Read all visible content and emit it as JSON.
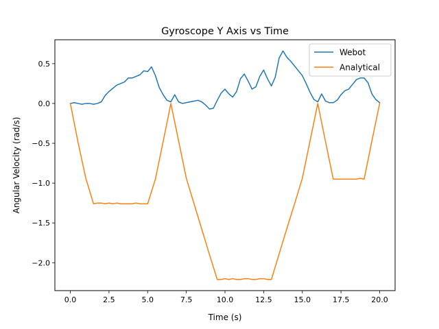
{
  "chart_data": {
    "type": "line",
    "title": "Gyroscope Y Axis vs Time",
    "xlabel": "Time (s)",
    "ylabel": "Angular Velocity (rad/s)",
    "xlim": [
      -1.0,
      21.0
    ],
    "ylim": [
      -2.35,
      0.8
    ],
    "xticks": [
      0.0,
      2.5,
      5.0,
      7.5,
      10.0,
      12.5,
      15.0,
      17.5,
      20.0
    ],
    "xtick_labels": [
      "0.0",
      "2.5",
      "5.0",
      "7.5",
      "10.0",
      "12.5",
      "15.0",
      "17.5",
      "20.0"
    ],
    "yticks": [
      -2.0,
      -1.5,
      -1.0,
      -0.5,
      0.0,
      0.5
    ],
    "ytick_labels": [
      "−2.0",
      "−1.5",
      "−1.0",
      "−0.5",
      "0.0",
      "0.5"
    ],
    "grid": false,
    "legend_position": "top-right",
    "series": [
      {
        "name": "Webot",
        "color": "#1f77b4",
        "x": [
          0.0,
          0.25,
          0.5,
          0.75,
          1.0,
          1.25,
          1.5,
          1.75,
          2.0,
          2.25,
          2.5,
          2.75,
          3.0,
          3.25,
          3.5,
          3.75,
          4.0,
          4.25,
          4.5,
          4.75,
          5.0,
          5.25,
          5.5,
          5.75,
          6.0,
          6.25,
          6.5,
          6.75,
          7.0,
          7.25,
          7.5,
          7.75,
          8.0,
          8.25,
          8.5,
          8.75,
          9.0,
          9.25,
          9.5,
          9.75,
          10.0,
          10.25,
          10.5,
          10.75,
          11.0,
          11.25,
          11.5,
          11.75,
          12.0,
          12.25,
          12.5,
          12.75,
          13.0,
          13.25,
          13.5,
          13.75,
          14.0,
          14.25,
          14.5,
          14.75,
          15.0,
          15.25,
          15.5,
          15.75,
          16.0,
          16.25,
          16.5,
          16.75,
          17.0,
          17.25,
          17.5,
          17.75,
          18.0,
          18.25,
          18.5,
          18.75,
          19.0,
          19.25,
          19.5,
          19.75,
          20.0
        ],
        "y": [
          0.0,
          0.01,
          0.0,
          -0.01,
          0.0,
          0.0,
          -0.01,
          0.0,
          0.02,
          0.1,
          0.15,
          0.19,
          0.23,
          0.25,
          0.27,
          0.32,
          0.32,
          0.34,
          0.36,
          0.41,
          0.4,
          0.46,
          0.35,
          0.2,
          0.11,
          0.04,
          0.02,
          0.11,
          0.02,
          0.0,
          0.01,
          0.02,
          0.03,
          0.04,
          0.02,
          -0.02,
          -0.07,
          -0.06,
          0.04,
          0.13,
          0.18,
          0.12,
          0.08,
          0.15,
          0.31,
          0.37,
          0.28,
          0.18,
          0.21,
          0.34,
          0.42,
          0.31,
          0.22,
          0.33,
          0.57,
          0.66,
          0.58,
          0.53,
          0.47,
          0.41,
          0.35,
          0.25,
          0.14,
          0.05,
          0.02,
          0.12,
          0.03,
          0.01,
          0.01,
          0.04,
          0.11,
          0.16,
          0.18,
          0.24,
          0.3,
          0.32,
          0.32,
          0.26,
          0.12,
          0.05,
          0.01
        ]
      },
      {
        "name": "Analytical",
        "color": "#ff7f0e",
        "x": [
          0.0,
          0.5,
          1.0,
          1.5,
          1.75,
          2.0,
          2.25,
          2.5,
          2.75,
          3.0,
          3.25,
          3.5,
          3.75,
          4.0,
          4.25,
          4.5,
          4.75,
          5.0,
          5.5,
          6.0,
          6.5,
          7.0,
          7.5,
          8.0,
          8.5,
          9.0,
          9.5,
          9.75,
          10.0,
          10.25,
          10.5,
          10.75,
          11.0,
          11.25,
          11.5,
          11.75,
          12.0,
          12.25,
          12.5,
          12.75,
          13.0,
          13.5,
          14.0,
          14.5,
          15.0,
          15.5,
          16.0,
          16.5,
          17.0,
          17.25,
          17.5,
          17.75,
          18.0,
          18.25,
          18.5,
          18.75,
          19.0,
          19.5,
          20.0
        ],
        "y": [
          0.0,
          -0.49,
          -0.94,
          -1.26,
          -1.25,
          -1.25,
          -1.26,
          -1.25,
          -1.26,
          -1.25,
          -1.26,
          -1.26,
          -1.26,
          -1.26,
          -1.25,
          -1.26,
          -1.26,
          -1.26,
          -0.95,
          -0.48,
          0.0,
          -0.47,
          -0.94,
          -1.26,
          -1.58,
          -1.9,
          -2.21,
          -2.21,
          -2.2,
          -2.21,
          -2.2,
          -2.21,
          -2.21,
          -2.2,
          -2.2,
          -2.21,
          -2.21,
          -2.2,
          -2.2,
          -2.21,
          -2.21,
          -1.89,
          -1.57,
          -1.26,
          -0.94,
          -0.47,
          0.0,
          -0.48,
          -0.95,
          -0.95,
          -0.95,
          -0.95,
          -0.95,
          -0.95,
          -0.95,
          -0.94,
          -0.95,
          -0.47,
          0.0
        ]
      }
    ]
  }
}
